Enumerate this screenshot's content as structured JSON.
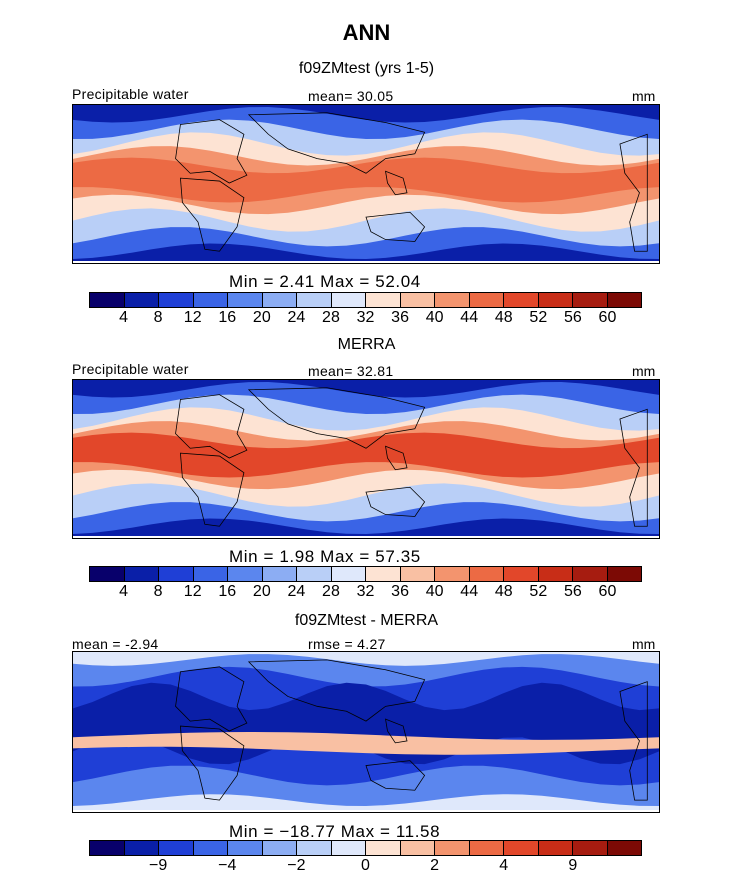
{
  "header": {
    "title": "ANN"
  },
  "panels": [
    {
      "subtitle": "f09ZMtest (yrs 1-5)",
      "left_label": "Precipitable water",
      "center_label": "mean=  30.05",
      "units": "mm",
      "min_max": "Min =    2.41  Max =   52.04",
      "tick_labels": [
        "4",
        "8",
        "12",
        "16",
        "20",
        "24",
        "28",
        "32",
        "36",
        "40",
        "44",
        "48",
        "52",
        "56",
        "60"
      ],
      "tick_positions": [
        1,
        2,
        3,
        4,
        5,
        6,
        7,
        8,
        9,
        10,
        11,
        12,
        13,
        14,
        15
      ],
      "n_segments": 16,
      "kind": "model"
    },
    {
      "subtitle": "MERRA",
      "left_label": "Precipitable water",
      "center_label": "mean=  32.81",
      "units": "mm",
      "min_max": "Min =    1.98  Max =   57.35",
      "tick_labels": [
        "4",
        "8",
        "12",
        "16",
        "20",
        "24",
        "28",
        "32",
        "36",
        "40",
        "44",
        "48",
        "52",
        "56",
        "60"
      ],
      "tick_positions": [
        1,
        2,
        3,
        4,
        5,
        6,
        7,
        8,
        9,
        10,
        11,
        12,
        13,
        14,
        15
      ],
      "n_segments": 16,
      "kind": "obs"
    },
    {
      "subtitle": "f09ZMtest - MERRA",
      "left_label": "mean =  -2.94",
      "center_label": "rmse =   4.27",
      "units": "mm",
      "min_max": "Min = −18.77  Max =   11.58",
      "tick_labels": [
        "−9",
        "−4",
        "−2",
        "0",
        "2",
        "4",
        "9"
      ],
      "tick_positions": [
        2,
        4,
        6,
        8,
        10,
        12,
        14
      ],
      "n_segments": 16,
      "kind": "diff"
    }
  ],
  "colors": {
    "scale": [
      "#08006b",
      "#0a1fa8",
      "#1f3fd6",
      "#3a64e6",
      "#5b86ee",
      "#8cadf3",
      "#b9cff7",
      "#dfe8fb",
      "#fde3d3",
      "#f9c0a3",
      "#f3946e",
      "#ec6a44",
      "#e2472a",
      "#c82d17",
      "#a61c10",
      "#7c0a05"
    ]
  },
  "chart_data": [
    {
      "type": "heatmap",
      "title": "f09ZMtest (yrs 1-5)",
      "field": "Precipitable water",
      "units": "mm",
      "mean": 30.05,
      "min": 2.41,
      "max": 52.04,
      "contour_levels": [
        4,
        8,
        12,
        16,
        20,
        24,
        28,
        32,
        36,
        40,
        44,
        48,
        52,
        56,
        60
      ]
    },
    {
      "type": "heatmap",
      "title": "MERRA",
      "field": "Precipitable water",
      "units": "mm",
      "mean": 32.81,
      "min": 1.98,
      "max": 57.35,
      "contour_levels": [
        4,
        8,
        12,
        16,
        20,
        24,
        28,
        32,
        36,
        40,
        44,
        48,
        52,
        56,
        60
      ]
    },
    {
      "type": "heatmap",
      "title": "f09ZMtest - MERRA",
      "units": "mm",
      "mean": -2.94,
      "rmse": 4.27,
      "min": -18.77,
      "max": 11.58,
      "contour_levels_labeled": [
        -9,
        -4,
        -2,
        0,
        2,
        4,
        9
      ]
    }
  ]
}
